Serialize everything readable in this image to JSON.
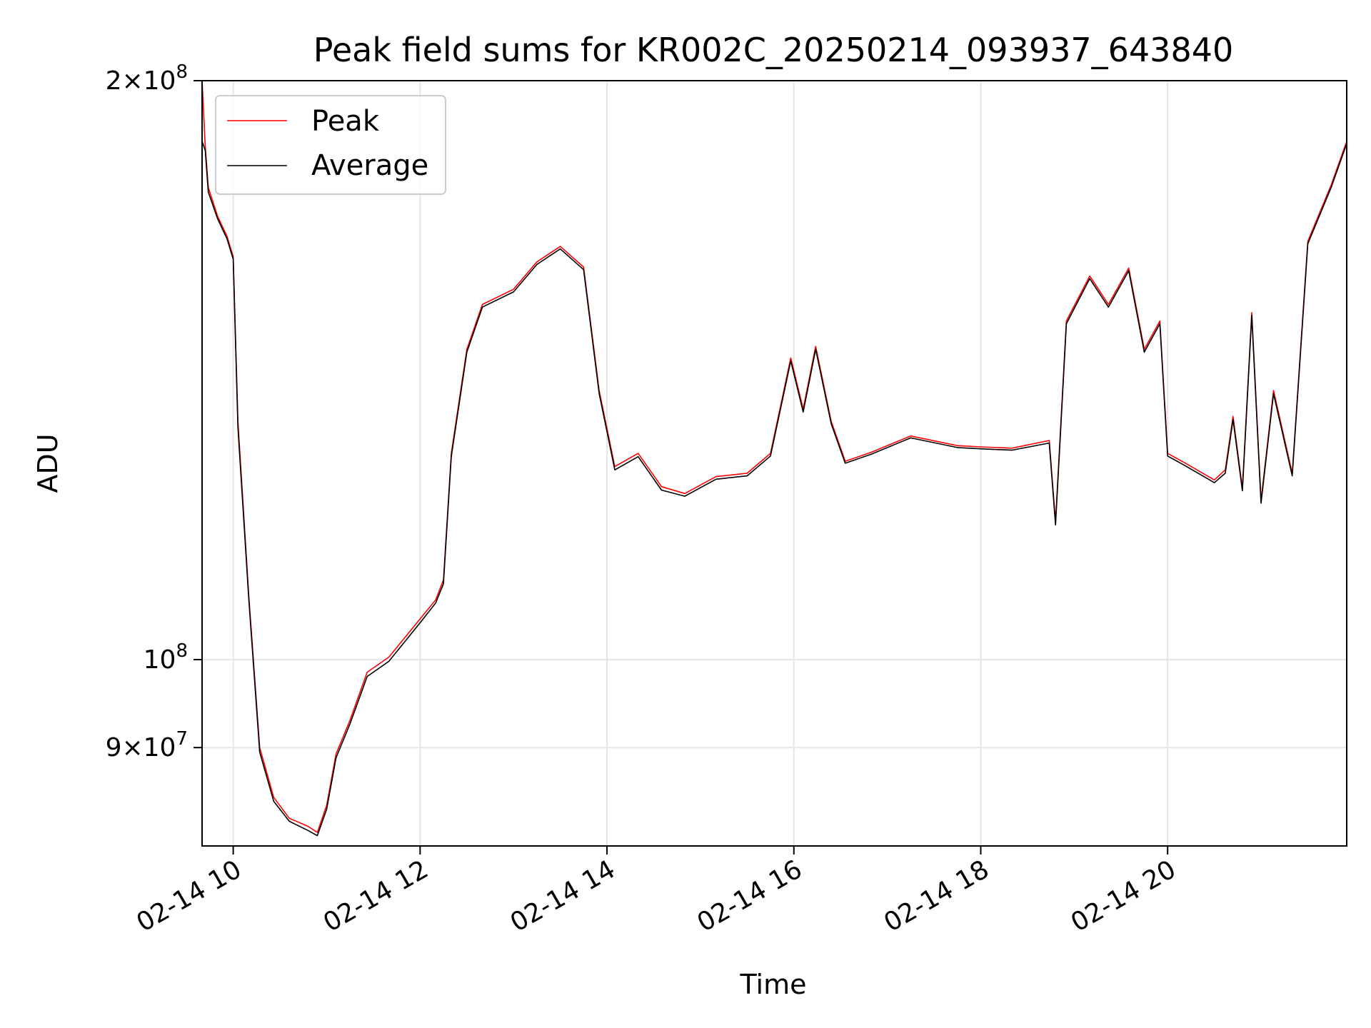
{
  "chart_data": {
    "type": "line",
    "title": "Peak field sums for KR002C_20250214_093937_643840",
    "xlabel": "Time",
    "ylabel": "ADU",
    "yscale": "log",
    "xlim": [
      "2025-02-14 09:40",
      "2025-02-14 21:55"
    ],
    "ylim": [
      80000000,
      200000000
    ],
    "grid": true,
    "legend_position": "upper-left",
    "x_ticks": [
      {
        "value": "2025-02-14 10:00",
        "label": "02-14 10"
      },
      {
        "value": "2025-02-14 12:00",
        "label": "02-14 12"
      },
      {
        "value": "2025-02-14 14:00",
        "label": "02-14 14"
      },
      {
        "value": "2025-02-14 16:00",
        "label": "02-14 16"
      },
      {
        "value": "2025-02-14 18:00",
        "label": "02-14 18"
      },
      {
        "value": "2025-02-14 20:00",
        "label": "02-14 20"
      }
    ],
    "y_ticks": [
      {
        "value": 200000000,
        "mantissa": "2",
        "exponent": "8"
      },
      {
        "value": 100000000,
        "mantissa": "",
        "exponent": "8"
      },
      {
        "value": 90000000,
        "mantissa": "9",
        "exponent": "7"
      }
    ],
    "series": [
      {
        "name": "Peak",
        "color": "#ff0000",
        "points": [
          [
            "2025-02-14 09:40",
            200000000
          ],
          [
            "2025-02-14 09:42",
            185000000
          ],
          [
            "2025-02-14 09:44",
            176000000
          ],
          [
            "2025-02-14 09:50",
            170000000
          ],
          [
            "2025-02-14 09:56",
            166000000
          ],
          [
            "2025-02-14 10:00",
            162000000
          ],
          [
            "2025-02-14 10:03",
            133000000
          ],
          [
            "2025-02-14 10:10",
            108000000
          ],
          [
            "2025-02-14 10:17",
            90000000
          ],
          [
            "2025-02-14 10:26",
            84800000
          ],
          [
            "2025-02-14 10:36",
            82700000
          ],
          [
            "2025-02-14 10:48",
            81900000
          ],
          [
            "2025-02-14 10:54",
            81300000
          ],
          [
            "2025-02-14 11:00",
            84000000
          ],
          [
            "2025-02-14 11:06",
            89300000
          ],
          [
            "2025-02-14 11:15",
            93000000
          ],
          [
            "2025-02-14 11:26",
            98500000
          ],
          [
            "2025-02-14 11:40",
            100300000
          ],
          [
            "2025-02-14 12:00",
            105000000
          ],
          [
            "2025-02-14 12:10",
            107400000
          ],
          [
            "2025-02-14 12:15",
            110000000
          ],
          [
            "2025-02-14 12:20",
            128000000
          ],
          [
            "2025-02-14 12:30",
            145000000
          ],
          [
            "2025-02-14 12:40",
            153000000
          ],
          [
            "2025-02-14 13:00",
            155800000
          ],
          [
            "2025-02-14 13:15",
            161000000
          ],
          [
            "2025-02-14 13:30",
            164000000
          ],
          [
            "2025-02-14 13:45",
            160000000
          ],
          [
            "2025-02-14 13:55",
            138000000
          ],
          [
            "2025-02-14 14:05",
            126000000
          ],
          [
            "2025-02-14 14:20",
            128000000
          ],
          [
            "2025-02-14 14:35",
            123000000
          ],
          [
            "2025-02-14 14:50",
            122000000
          ],
          [
            "2025-02-14 15:10",
            124500000
          ],
          [
            "2025-02-14 15:30",
            125000000
          ],
          [
            "2025-02-14 15:45",
            128000000
          ],
          [
            "2025-02-14 15:58",
            143500000
          ],
          [
            "2025-02-14 16:06",
            135000000
          ],
          [
            "2025-02-14 16:14",
            145500000
          ],
          [
            "2025-02-14 16:24",
            133000000
          ],
          [
            "2025-02-14 16:33",
            126800000
          ],
          [
            "2025-02-14 16:50",
            128200000
          ],
          [
            "2025-02-14 17:15",
            130700000
          ],
          [
            "2025-02-14 17:45",
            129200000
          ],
          [
            "2025-02-14 18:00",
            129000000
          ],
          [
            "2025-02-14 18:20",
            128800000
          ],
          [
            "2025-02-14 18:44",
            130000000
          ],
          [
            "2025-02-14 18:48",
            118000000
          ],
          [
            "2025-02-14 18:55",
            150000000
          ],
          [
            "2025-02-14 19:10",
            158300000
          ],
          [
            "2025-02-14 19:22",
            153000000
          ],
          [
            "2025-02-14 19:35",
            159800000
          ],
          [
            "2025-02-14 19:45",
            145000000
          ],
          [
            "2025-02-14 19:55",
            150000000
          ],
          [
            "2025-02-14 20:00",
            128000000
          ],
          [
            "2025-02-14 20:10",
            126700000
          ],
          [
            "2025-02-14 20:30",
            124000000
          ],
          [
            "2025-02-14 20:37",
            125500000
          ],
          [
            "2025-02-14 20:42",
            133800000
          ],
          [
            "2025-02-14 20:48",
            122800000
          ],
          [
            "2025-02-14 20:54",
            151500000
          ],
          [
            "2025-02-14 21:00",
            121000000
          ],
          [
            "2025-02-14 21:08",
            138000000
          ],
          [
            "2025-02-14 21:20",
            125000000
          ],
          [
            "2025-02-14 21:30",
            165000000
          ],
          [
            "2025-02-14 21:45",
            176500000
          ],
          [
            "2025-02-14 21:55",
            186000000
          ]
        ]
      },
      {
        "name": "Average",
        "color": "#000000",
        "points": [
          [
            "2025-02-14 09:40",
            186000000
          ],
          [
            "2025-02-14 09:42",
            184000000
          ],
          [
            "2025-02-14 09:44",
            175000000
          ],
          [
            "2025-02-14 09:50",
            169500000
          ],
          [
            "2025-02-14 09:56",
            165500000
          ],
          [
            "2025-02-14 10:00",
            161500000
          ],
          [
            "2025-02-14 10:03",
            132000000
          ],
          [
            "2025-02-14 10:10",
            107500000
          ],
          [
            "2025-02-14 10:17",
            89500000
          ],
          [
            "2025-02-14 10:26",
            84400000
          ],
          [
            "2025-02-14 10:36",
            82400000
          ],
          [
            "2025-02-14 10:48",
            81500000
          ],
          [
            "2025-02-14 10:54",
            81000000
          ],
          [
            "2025-02-14 11:00",
            83600000
          ],
          [
            "2025-02-14 11:06",
            88900000
          ],
          [
            "2025-02-14 11:15",
            92600000
          ],
          [
            "2025-02-14 11:26",
            98000000
          ],
          [
            "2025-02-14 11:40",
            99800000
          ],
          [
            "2025-02-14 12:00",
            104500000
          ],
          [
            "2025-02-14 12:10",
            107000000
          ],
          [
            "2025-02-14 12:15",
            109500000
          ],
          [
            "2025-02-14 12:20",
            127500000
          ],
          [
            "2025-02-14 12:30",
            144500000
          ],
          [
            "2025-02-14 12:40",
            152500000
          ],
          [
            "2025-02-14 13:00",
            155300000
          ],
          [
            "2025-02-14 13:15",
            160500000
          ],
          [
            "2025-02-14 13:30",
            163500000
          ],
          [
            "2025-02-14 13:45",
            159500000
          ],
          [
            "2025-02-14 13:55",
            137500000
          ],
          [
            "2025-02-14 14:05",
            125500000
          ],
          [
            "2025-02-14 14:20",
            127500000
          ],
          [
            "2025-02-14 14:35",
            122500000
          ],
          [
            "2025-02-14 14:50",
            121600000
          ],
          [
            "2025-02-14 15:10",
            124100000
          ],
          [
            "2025-02-14 15:30",
            124600000
          ],
          [
            "2025-02-14 15:45",
            127600000
          ],
          [
            "2025-02-14 15:58",
            143000000
          ],
          [
            "2025-02-14 16:06",
            134500000
          ],
          [
            "2025-02-14 16:14",
            145000000
          ],
          [
            "2025-02-14 16:24",
            132600000
          ],
          [
            "2025-02-14 16:33",
            126500000
          ],
          [
            "2025-02-14 16:50",
            127900000
          ],
          [
            "2025-02-14 17:15",
            130400000
          ],
          [
            "2025-02-14 17:45",
            128900000
          ],
          [
            "2025-02-14 18:00",
            128700000
          ],
          [
            "2025-02-14 18:20",
            128500000
          ],
          [
            "2025-02-14 18:44",
            129600000
          ],
          [
            "2025-02-14 18:48",
            117500000
          ],
          [
            "2025-02-14 18:55",
            149500000
          ],
          [
            "2025-02-14 19:10",
            157800000
          ],
          [
            "2025-02-14 19:22",
            152500000
          ],
          [
            "2025-02-14 19:35",
            159300000
          ],
          [
            "2025-02-14 19:45",
            144500000
          ],
          [
            "2025-02-14 19:55",
            149500000
          ],
          [
            "2025-02-14 20:00",
            127600000
          ],
          [
            "2025-02-14 20:10",
            126300000
          ],
          [
            "2025-02-14 20:30",
            123600000
          ],
          [
            "2025-02-14 20:37",
            125000000
          ],
          [
            "2025-02-14 20:42",
            133300000
          ],
          [
            "2025-02-14 20:48",
            122400000
          ],
          [
            "2025-02-14 20:54",
            151000000
          ],
          [
            "2025-02-14 21:00",
            120600000
          ],
          [
            "2025-02-14 21:08",
            137500000
          ],
          [
            "2025-02-14 21:20",
            124600000
          ],
          [
            "2025-02-14 21:30",
            164500000
          ],
          [
            "2025-02-14 21:45",
            176000000
          ],
          [
            "2025-02-14 21:55",
            185500000
          ]
        ]
      }
    ]
  }
}
